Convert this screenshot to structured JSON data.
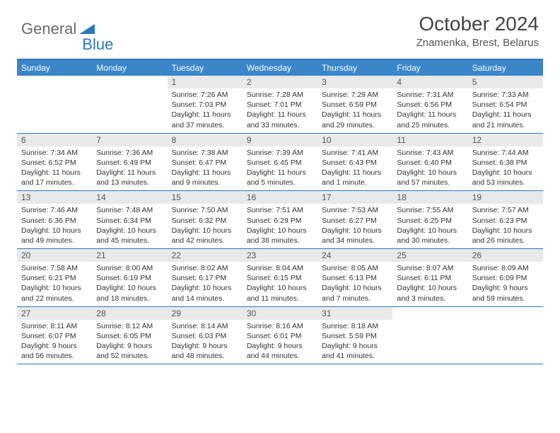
{
  "logo": {
    "text1": "General",
    "text2": "Blue"
  },
  "title": "October 2024",
  "location": "Znamenka, Brest, Belarus",
  "colors": {
    "header_bar": "#3a86c8",
    "border": "#2b77bb",
    "daynum_bg": "#e9e9e9",
    "logo_gray": "#6a6a6a",
    "logo_blue": "#2b77bb",
    "text": "#333333"
  },
  "dow": [
    "Sunday",
    "Monday",
    "Tuesday",
    "Wednesday",
    "Thursday",
    "Friday",
    "Saturday"
  ],
  "weeks": [
    [
      {
        "n": "",
        "sr": "",
        "ss": "",
        "dl": ""
      },
      {
        "n": "",
        "sr": "",
        "ss": "",
        "dl": ""
      },
      {
        "n": "1",
        "sr": "Sunrise: 7:26 AM",
        "ss": "Sunset: 7:03 PM",
        "dl": "Daylight: 11 hours and 37 minutes."
      },
      {
        "n": "2",
        "sr": "Sunrise: 7:28 AM",
        "ss": "Sunset: 7:01 PM",
        "dl": "Daylight: 11 hours and 33 minutes."
      },
      {
        "n": "3",
        "sr": "Sunrise: 7:29 AM",
        "ss": "Sunset: 6:59 PM",
        "dl": "Daylight: 11 hours and 29 minutes."
      },
      {
        "n": "4",
        "sr": "Sunrise: 7:31 AM",
        "ss": "Sunset: 6:56 PM",
        "dl": "Daylight: 11 hours and 25 minutes."
      },
      {
        "n": "5",
        "sr": "Sunrise: 7:33 AM",
        "ss": "Sunset: 6:54 PM",
        "dl": "Daylight: 11 hours and 21 minutes."
      }
    ],
    [
      {
        "n": "6",
        "sr": "Sunrise: 7:34 AM",
        "ss": "Sunset: 6:52 PM",
        "dl": "Daylight: 11 hours and 17 minutes."
      },
      {
        "n": "7",
        "sr": "Sunrise: 7:36 AM",
        "ss": "Sunset: 6:49 PM",
        "dl": "Daylight: 11 hours and 13 minutes."
      },
      {
        "n": "8",
        "sr": "Sunrise: 7:38 AM",
        "ss": "Sunset: 6:47 PM",
        "dl": "Daylight: 11 hours and 9 minutes."
      },
      {
        "n": "9",
        "sr": "Sunrise: 7:39 AM",
        "ss": "Sunset: 6:45 PM",
        "dl": "Daylight: 11 hours and 5 minutes."
      },
      {
        "n": "10",
        "sr": "Sunrise: 7:41 AM",
        "ss": "Sunset: 6:43 PM",
        "dl": "Daylight: 11 hours and 1 minute."
      },
      {
        "n": "11",
        "sr": "Sunrise: 7:43 AM",
        "ss": "Sunset: 6:40 PM",
        "dl": "Daylight: 10 hours and 57 minutes."
      },
      {
        "n": "12",
        "sr": "Sunrise: 7:44 AM",
        "ss": "Sunset: 6:38 PM",
        "dl": "Daylight: 10 hours and 53 minutes."
      }
    ],
    [
      {
        "n": "13",
        "sr": "Sunrise: 7:46 AM",
        "ss": "Sunset: 6:36 PM",
        "dl": "Daylight: 10 hours and 49 minutes."
      },
      {
        "n": "14",
        "sr": "Sunrise: 7:48 AM",
        "ss": "Sunset: 6:34 PM",
        "dl": "Daylight: 10 hours and 45 minutes."
      },
      {
        "n": "15",
        "sr": "Sunrise: 7:50 AM",
        "ss": "Sunset: 6:32 PM",
        "dl": "Daylight: 10 hours and 42 minutes."
      },
      {
        "n": "16",
        "sr": "Sunrise: 7:51 AM",
        "ss": "Sunset: 6:29 PM",
        "dl": "Daylight: 10 hours and 38 minutes."
      },
      {
        "n": "17",
        "sr": "Sunrise: 7:53 AM",
        "ss": "Sunset: 6:27 PM",
        "dl": "Daylight: 10 hours and 34 minutes."
      },
      {
        "n": "18",
        "sr": "Sunrise: 7:55 AM",
        "ss": "Sunset: 6:25 PM",
        "dl": "Daylight: 10 hours and 30 minutes."
      },
      {
        "n": "19",
        "sr": "Sunrise: 7:57 AM",
        "ss": "Sunset: 6:23 PM",
        "dl": "Daylight: 10 hours and 26 minutes."
      }
    ],
    [
      {
        "n": "20",
        "sr": "Sunrise: 7:58 AM",
        "ss": "Sunset: 6:21 PM",
        "dl": "Daylight: 10 hours and 22 minutes."
      },
      {
        "n": "21",
        "sr": "Sunrise: 8:00 AM",
        "ss": "Sunset: 6:19 PM",
        "dl": "Daylight: 10 hours and 18 minutes."
      },
      {
        "n": "22",
        "sr": "Sunrise: 8:02 AM",
        "ss": "Sunset: 6:17 PM",
        "dl": "Daylight: 10 hours and 14 minutes."
      },
      {
        "n": "23",
        "sr": "Sunrise: 8:04 AM",
        "ss": "Sunset: 6:15 PM",
        "dl": "Daylight: 10 hours and 11 minutes."
      },
      {
        "n": "24",
        "sr": "Sunrise: 8:05 AM",
        "ss": "Sunset: 6:13 PM",
        "dl": "Daylight: 10 hours and 7 minutes."
      },
      {
        "n": "25",
        "sr": "Sunrise: 8:07 AM",
        "ss": "Sunset: 6:11 PM",
        "dl": "Daylight: 10 hours and 3 minutes."
      },
      {
        "n": "26",
        "sr": "Sunrise: 8:09 AM",
        "ss": "Sunset: 6:09 PM",
        "dl": "Daylight: 9 hours and 59 minutes."
      }
    ],
    [
      {
        "n": "27",
        "sr": "Sunrise: 8:11 AM",
        "ss": "Sunset: 6:07 PM",
        "dl": "Daylight: 9 hours and 56 minutes."
      },
      {
        "n": "28",
        "sr": "Sunrise: 8:12 AM",
        "ss": "Sunset: 6:05 PM",
        "dl": "Daylight: 9 hours and 52 minutes."
      },
      {
        "n": "29",
        "sr": "Sunrise: 8:14 AM",
        "ss": "Sunset: 6:03 PM",
        "dl": "Daylight: 9 hours and 48 minutes."
      },
      {
        "n": "30",
        "sr": "Sunrise: 8:16 AM",
        "ss": "Sunset: 6:01 PM",
        "dl": "Daylight: 9 hours and 44 minutes."
      },
      {
        "n": "31",
        "sr": "Sunrise: 8:18 AM",
        "ss": "Sunset: 5:59 PM",
        "dl": "Daylight: 9 hours and 41 minutes."
      },
      {
        "n": "",
        "sr": "",
        "ss": "",
        "dl": ""
      },
      {
        "n": "",
        "sr": "",
        "ss": "",
        "dl": ""
      }
    ]
  ]
}
